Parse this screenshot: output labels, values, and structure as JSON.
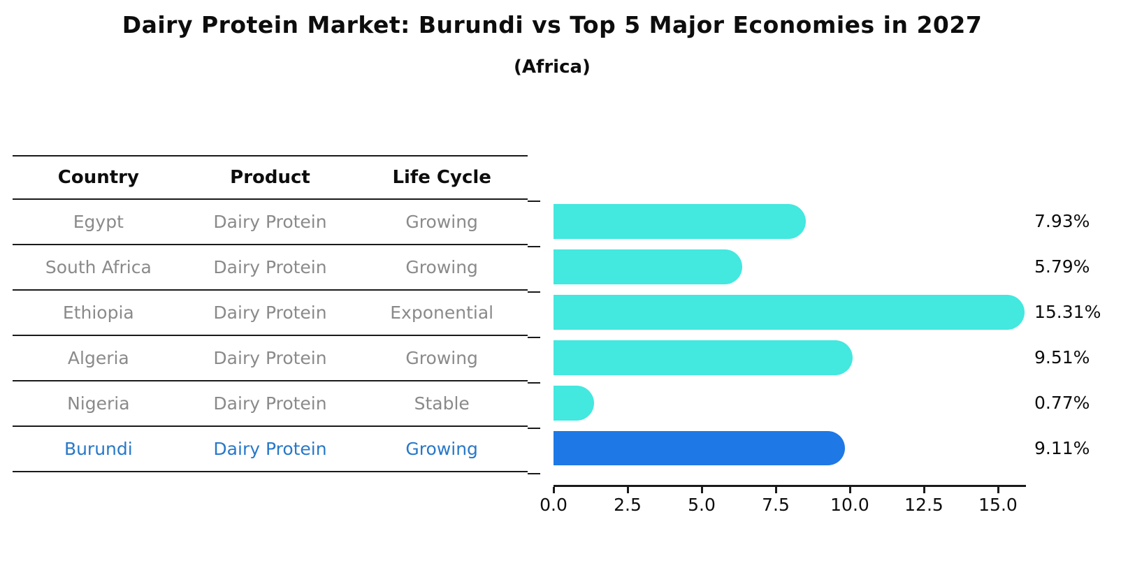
{
  "title": "Dairy Protein Market: Burundi vs Top 5 Major Economies in 2027",
  "subtitle": "(Africa)",
  "table": {
    "columns": [
      "Country",
      "Product",
      "Life Cycle"
    ]
  },
  "chart_data": {
    "type": "bar",
    "orientation": "horizontal",
    "title": "Dairy Protein Market: Burundi vs Top 5 Major Economies in 2027",
    "subtitle": "(Africa)",
    "xlabel": "",
    "ylabel": "",
    "xlim": [
      0,
      15.9
    ],
    "x_tick_values": [
      0,
      2.5,
      5,
      7.5,
      10,
      12.5,
      15
    ],
    "x_tick_labels": [
      "0.0",
      "2.5",
      "5.0",
      "7.5",
      "10.0",
      "12.5",
      "15.0"
    ],
    "grid": false,
    "legend": false,
    "value_suffix": "%",
    "rows": [
      {
        "country": "Egypt",
        "product": "Dairy Protein",
        "life_cycle": "Growing",
        "value": 7.93,
        "label": "7.93%",
        "highlight": false
      },
      {
        "country": "South Africa",
        "product": "Dairy Protein",
        "life_cycle": "Growing",
        "value": 5.79,
        "label": "5.79%",
        "highlight": false
      },
      {
        "country": "Ethiopia",
        "product": "Dairy Protein",
        "life_cycle": "Exponential",
        "value": 15.31,
        "label": "15.31%",
        "highlight": false
      },
      {
        "country": "Algeria",
        "product": "Dairy Protein",
        "life_cycle": "Growing",
        "value": 9.51,
        "label": "9.51%",
        "highlight": false
      },
      {
        "country": "Nigeria",
        "product": "Dairy Protein",
        "life_cycle": "Stable",
        "value": 0.77,
        "label": "0.77%",
        "highlight": false
      },
      {
        "country": "Burundi",
        "product": "Dairy Protein",
        "life_cycle": "Growing",
        "value": 9.11,
        "label": "9.11%",
        "highlight": true
      }
    ],
    "colors": {
      "bar_color": "#43e8df",
      "highlight_bar_color": "#1e78e6",
      "highlight_text_color": "#2878c8",
      "table_text_color": "#8a8a8a",
      "header_text_color": "#0d0d0d",
      "axis_color": "#1a1a1a"
    }
  }
}
